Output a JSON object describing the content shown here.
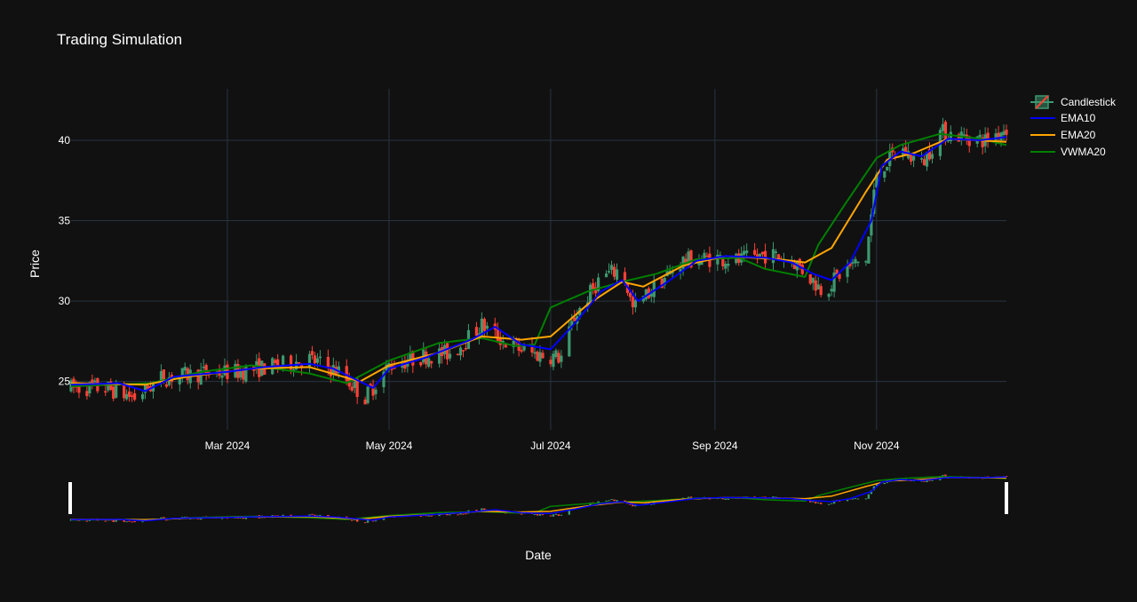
{
  "chart_data": {
    "type": "candlestick",
    "title": "Trading Simulation",
    "xlabel": "Date",
    "ylabel": "Price",
    "x_range": [
      "2024-01-02",
      "2024-12-20"
    ],
    "ylim": [
      22.0,
      43.2
    ],
    "y_ticks": [
      25,
      30,
      35,
      40
    ],
    "x_ticks": [
      {
        "date": "2024-03-01",
        "label": "Mar 2024"
      },
      {
        "date": "2024-05-01",
        "label": "May 2024"
      },
      {
        "date": "2024-07-01",
        "label": "Jul 2024"
      },
      {
        "date": "2024-09-01",
        "label": "Sep 2024"
      },
      {
        "date": "2024-11-01",
        "label": "Nov 2024"
      }
    ],
    "grid": true,
    "legend_position": "top-right",
    "rangeslider": true,
    "colors": {
      "background": "#111111",
      "grid": "#283442",
      "increasing": "#3D9970",
      "decreasing": "#FF4136",
      "ema10": "#0000FF",
      "ema20": "#FFA500",
      "vwma20": "#008000"
    },
    "legend": [
      "Candlestick",
      "EMA10",
      "EMA20",
      "VWMA20"
    ],
    "close_trend": [
      [
        "2024-01-02",
        24.6
      ],
      [
        "2024-01-15",
        24.6
      ],
      [
        "2024-01-26",
        24.0
      ],
      [
        "2024-02-05",
        25.2
      ],
      [
        "2024-02-20",
        25.5
      ],
      [
        "2024-03-05",
        25.6
      ],
      [
        "2024-03-20",
        26.0
      ],
      [
        "2024-04-01",
        26.4
      ],
      [
        "2024-04-12",
        25.6
      ],
      [
        "2024-04-22",
        24.0
      ],
      [
        "2024-05-01",
        26.0
      ],
      [
        "2024-05-15",
        26.6
      ],
      [
        "2024-05-25",
        26.8
      ],
      [
        "2024-06-05",
        28.5
      ],
      [
        "2024-06-15",
        27.3
      ],
      [
        "2024-06-25",
        26.7
      ],
      [
        "2024-07-05",
        26.5
      ],
      [
        "2024-07-10",
        29.0
      ],
      [
        "2024-07-20",
        31.5
      ],
      [
        "2024-07-28",
        32.0
      ],
      [
        "2024-08-01",
        29.5
      ],
      [
        "2024-08-10",
        31.0
      ],
      [
        "2024-08-20",
        32.5
      ],
      [
        "2024-09-01",
        32.7
      ],
      [
        "2024-09-10",
        32.5
      ],
      [
        "2024-09-20",
        32.9
      ],
      [
        "2024-09-30",
        32.6
      ],
      [
        "2024-10-06",
        31.6
      ],
      [
        "2024-10-12",
        30.6
      ],
      [
        "2024-10-20",
        32.0
      ],
      [
        "2024-10-28",
        32.6
      ],
      [
        "2024-11-01",
        38.0
      ],
      [
        "2024-11-10",
        39.5
      ],
      [
        "2024-11-18",
        38.5
      ],
      [
        "2024-11-25",
        40.5
      ],
      [
        "2024-12-05",
        40.2
      ],
      [
        "2024-12-12",
        40.0
      ],
      [
        "2024-12-20",
        40.8
      ]
    ],
    "ema10": [
      [
        "2024-01-02",
        24.8
      ],
      [
        "2024-01-20",
        24.9
      ],
      [
        "2024-01-30",
        24.4
      ],
      [
        "2024-02-10",
        25.3
      ],
      [
        "2024-03-01",
        25.6
      ],
      [
        "2024-03-15",
        25.9
      ],
      [
        "2024-04-01",
        26.1
      ],
      [
        "2024-04-10",
        25.8
      ],
      [
        "2024-04-25",
        24.6
      ],
      [
        "2024-05-01",
        25.8
      ],
      [
        "2024-05-15",
        26.5
      ],
      [
        "2024-06-01",
        27.6
      ],
      [
        "2024-06-10",
        28.4
      ],
      [
        "2024-06-20",
        27.3
      ],
      [
        "2024-07-01",
        27.0
      ],
      [
        "2024-07-10",
        28.6
      ],
      [
        "2024-07-20",
        30.6
      ],
      [
        "2024-07-28",
        31.3
      ],
      [
        "2024-08-03",
        30.0
      ],
      [
        "2024-08-15",
        31.3
      ],
      [
        "2024-08-25",
        32.5
      ],
      [
        "2024-09-05",
        32.8
      ],
      [
        "2024-09-20",
        32.7
      ],
      [
        "2024-09-30",
        32.4
      ],
      [
        "2024-10-08",
        31.7
      ],
      [
        "2024-10-15",
        31.3
      ],
      [
        "2024-10-22",
        32.4
      ],
      [
        "2024-10-30",
        35.0
      ],
      [
        "2024-11-03",
        38.4
      ],
      [
        "2024-11-10",
        39.3
      ],
      [
        "2024-11-18",
        39.0
      ],
      [
        "2024-11-28",
        40.1
      ],
      [
        "2024-12-10",
        40.0
      ],
      [
        "2024-12-20",
        40.2
      ]
    ],
    "ema20": [
      [
        "2024-01-02",
        24.9
      ],
      [
        "2024-01-30",
        24.8
      ],
      [
        "2024-02-15",
        25.3
      ],
      [
        "2024-03-10",
        25.8
      ],
      [
        "2024-04-01",
        25.9
      ],
      [
        "2024-04-20",
        25.0
      ],
      [
        "2024-05-01",
        26.0
      ],
      [
        "2024-05-20",
        26.8
      ],
      [
        "2024-06-05",
        27.8
      ],
      [
        "2024-06-20",
        27.6
      ],
      [
        "2024-07-01",
        27.8
      ],
      [
        "2024-07-15",
        29.8
      ],
      [
        "2024-07-28",
        31.2
      ],
      [
        "2024-08-05",
        30.9
      ],
      [
        "2024-08-20",
        32.2
      ],
      [
        "2024-09-05",
        32.8
      ],
      [
        "2024-09-25",
        32.6
      ],
      [
        "2024-10-05",
        32.4
      ],
      [
        "2024-10-15",
        33.3
      ],
      [
        "2024-10-28",
        36.8
      ],
      [
        "2024-11-05",
        38.8
      ],
      [
        "2024-11-15",
        39.2
      ],
      [
        "2024-11-28",
        40.1
      ],
      [
        "2024-12-20",
        39.9
      ]
    ],
    "vwma20": [
      [
        "2024-01-02",
        24.7
      ],
      [
        "2024-02-01",
        24.9
      ],
      [
        "2024-02-20",
        25.6
      ],
      [
        "2024-03-10",
        26.0
      ],
      [
        "2024-04-01",
        25.5
      ],
      [
        "2024-04-15",
        24.9
      ],
      [
        "2024-05-01",
        26.3
      ],
      [
        "2024-05-20",
        27.4
      ],
      [
        "2024-06-05",
        27.7
      ],
      [
        "2024-06-18",
        27.2
      ],
      [
        "2024-06-25",
        27.3
      ],
      [
        "2024-07-01",
        29.6
      ],
      [
        "2024-07-15",
        30.6
      ],
      [
        "2024-07-28",
        31.2
      ],
      [
        "2024-08-10",
        31.7
      ],
      [
        "2024-08-25",
        32.6
      ],
      [
        "2024-09-10",
        32.7
      ],
      [
        "2024-09-20",
        32.0
      ],
      [
        "2024-10-05",
        31.5
      ],
      [
        "2024-10-10",
        33.5
      ],
      [
        "2024-10-20",
        36.0
      ],
      [
        "2024-11-01",
        38.9
      ],
      [
        "2024-11-10",
        39.7
      ],
      [
        "2024-11-25",
        40.4
      ],
      [
        "2024-12-10",
        40.1
      ],
      [
        "2024-12-20",
        39.7
      ]
    ]
  }
}
